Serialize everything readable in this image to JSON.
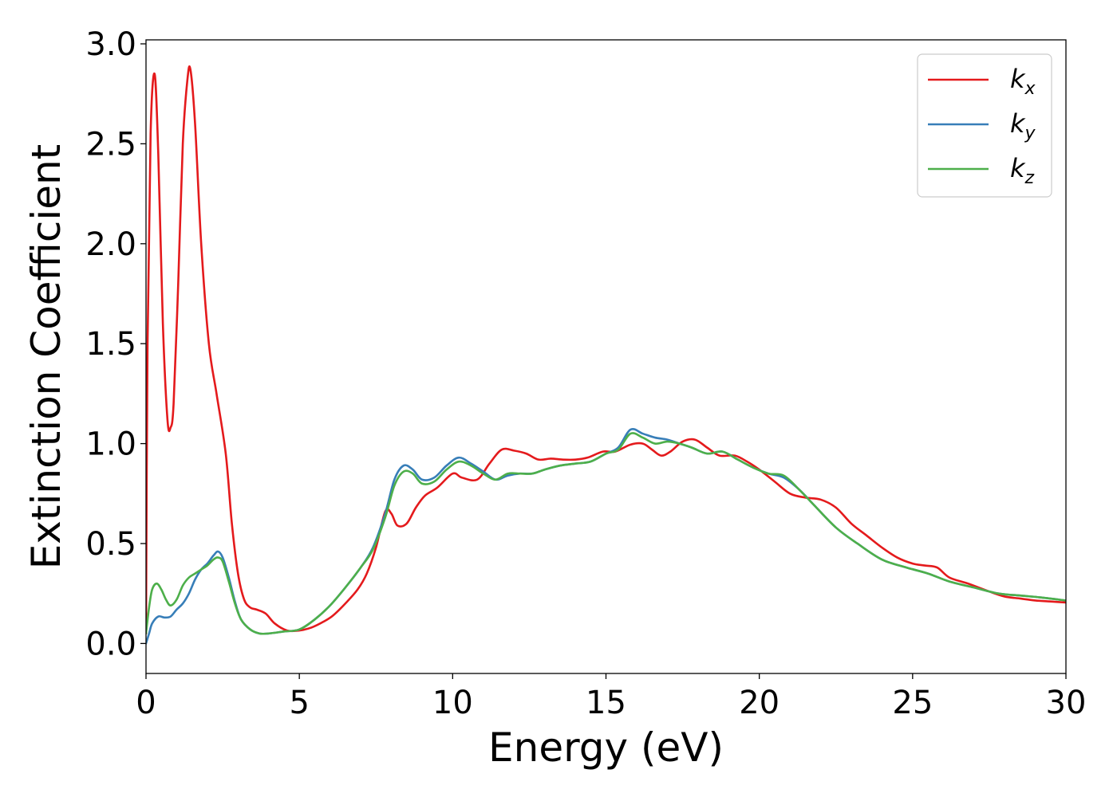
{
  "chart_data": {
    "type": "line",
    "xlabel": "Energy (eV)",
    "ylabel": "Extinction Coefficient",
    "xlim": [
      0,
      30
    ],
    "ylim": [
      -0.15,
      3.02
    ],
    "xticks": [
      0,
      5,
      10,
      15,
      20,
      25,
      30
    ],
    "xtick_labels": [
      "0",
      "5",
      "10",
      "15",
      "20",
      "25",
      "30"
    ],
    "yticks": [
      0.0,
      0.5,
      1.0,
      1.5,
      2.0,
      2.5,
      3.0
    ],
    "ytick_labels": [
      "0.0",
      "0.5",
      "1.0",
      "1.5",
      "2.0",
      "2.5",
      "3.0"
    ],
    "grid": false,
    "legend_position": "top-right",
    "series": [
      {
        "name": "k",
        "subscript": "x",
        "color": "#e41a1c",
        "x": [
          0,
          0.05,
          0.15,
          0.28,
          0.4,
          0.55,
          0.7,
          0.8,
          0.9,
          1.05,
          1.2,
          1.35,
          1.45,
          1.6,
          1.8,
          2.05,
          2.3,
          2.6,
          2.8,
          3.0,
          3.2,
          3.4,
          3.6,
          3.9,
          4.2,
          4.6,
          5.0,
          5.4,
          5.8,
          6.1,
          6.5,
          6.9,
          7.2,
          7.5,
          7.8,
          8.0,
          8.2,
          8.5,
          8.8,
          9.1,
          9.5,
          10.0,
          10.3,
          10.8,
          11.2,
          11.6,
          12.0,
          12.4,
          12.8,
          13.2,
          13.6,
          14.0,
          14.4,
          14.9,
          15.3,
          15.8,
          16.2,
          16.5,
          16.8,
          17.1,
          17.5,
          17.9,
          18.3,
          18.7,
          19.2,
          19.6,
          20.0,
          20.5,
          21.0,
          21.5,
          22.0,
          22.5,
          23.0,
          23.5,
          24.0,
          24.5,
          25.0,
          25.4,
          25.8,
          26.2,
          26.8,
          27.5,
          28.0,
          28.5,
          29.0,
          29.5,
          30.0
        ],
        "y": [
          0.05,
          1.5,
          2.55,
          2.85,
          2.45,
          1.6,
          1.12,
          1.08,
          1.2,
          1.8,
          2.5,
          2.82,
          2.87,
          2.6,
          2.0,
          1.5,
          1.25,
          0.95,
          0.6,
          0.35,
          0.22,
          0.18,
          0.17,
          0.15,
          0.1,
          0.065,
          0.065,
          0.08,
          0.11,
          0.14,
          0.2,
          0.27,
          0.35,
          0.48,
          0.66,
          0.65,
          0.59,
          0.6,
          0.68,
          0.74,
          0.78,
          0.85,
          0.83,
          0.82,
          0.9,
          0.97,
          0.965,
          0.95,
          0.92,
          0.925,
          0.92,
          0.92,
          0.93,
          0.96,
          0.96,
          0.995,
          1.0,
          0.97,
          0.94,
          0.96,
          1.01,
          1.02,
          0.98,
          0.94,
          0.94,
          0.91,
          0.87,
          0.81,
          0.75,
          0.73,
          0.72,
          0.68,
          0.6,
          0.54,
          0.48,
          0.43,
          0.4,
          0.39,
          0.38,
          0.33,
          0.3,
          0.26,
          0.235,
          0.225,
          0.215,
          0.21,
          0.205
        ]
      },
      {
        "name": "k",
        "subscript": "y",
        "color": "#377eb8",
        "x": [
          0,
          0.1,
          0.2,
          0.4,
          0.6,
          0.8,
          1.0,
          1.2,
          1.4,
          1.6,
          1.8,
          2.0,
          2.2,
          2.35,
          2.5,
          2.7,
          2.9,
          3.1,
          3.4,
          3.7,
          4.0,
          4.5,
          5.0,
          5.5,
          6.0,
          6.5,
          7.0,
          7.4,
          7.8,
          8.1,
          8.4,
          8.7,
          9.0,
          9.4,
          9.8,
          10.2,
          10.6,
          11.0,
          11.4,
          11.8,
          12.2,
          12.6,
          13.0,
          13.5,
          14.0,
          14.5,
          15.0,
          15.4,
          15.8,
          16.2,
          16.6,
          17.0,
          17.4,
          17.8,
          18.3,
          18.8,
          19.3,
          19.8,
          20.3,
          20.8,
          21.3,
          21.8,
          22.5,
          23.2,
          24.0,
          24.8,
          25.5,
          26.2,
          27.0,
          27.8,
          28.5,
          29.2,
          30.0
        ],
        "y": [
          0.0,
          0.05,
          0.1,
          0.135,
          0.13,
          0.135,
          0.17,
          0.2,
          0.25,
          0.32,
          0.37,
          0.4,
          0.44,
          0.46,
          0.43,
          0.33,
          0.21,
          0.12,
          0.07,
          0.05,
          0.05,
          0.06,
          0.07,
          0.12,
          0.19,
          0.28,
          0.38,
          0.48,
          0.65,
          0.82,
          0.89,
          0.87,
          0.82,
          0.83,
          0.89,
          0.93,
          0.9,
          0.86,
          0.82,
          0.84,
          0.85,
          0.85,
          0.87,
          0.89,
          0.9,
          0.91,
          0.95,
          0.98,
          1.07,
          1.05,
          1.03,
          1.02,
          1.0,
          0.98,
          0.95,
          0.96,
          0.92,
          0.88,
          0.85,
          0.83,
          0.77,
          0.69,
          0.58,
          0.5,
          0.42,
          0.38,
          0.35,
          0.31,
          0.28,
          0.25,
          0.24,
          0.23,
          0.215
        ]
      },
      {
        "name": "k",
        "subscript": "z",
        "color": "#4daf4a",
        "x": [
          0,
          0.1,
          0.2,
          0.35,
          0.5,
          0.65,
          0.8,
          1.0,
          1.2,
          1.4,
          1.6,
          1.8,
          2.0,
          2.2,
          2.35,
          2.5,
          2.7,
          2.9,
          3.1,
          3.4,
          3.7,
          4.0,
          4.5,
          5.0,
          5.5,
          6.0,
          6.5,
          7.0,
          7.4,
          7.8,
          8.1,
          8.4,
          8.7,
          9.0,
          9.4,
          9.8,
          10.2,
          10.6,
          11.0,
          11.4,
          11.8,
          12.2,
          12.6,
          13.0,
          13.5,
          14.0,
          14.5,
          15.0,
          15.4,
          15.8,
          16.2,
          16.6,
          17.0,
          17.4,
          17.8,
          18.3,
          18.8,
          19.3,
          19.8,
          20.3,
          20.8,
          21.3,
          21.8,
          22.5,
          23.2,
          24.0,
          24.8,
          25.5,
          26.2,
          27.0,
          27.8,
          28.5,
          29.2,
          30.0
        ],
        "y": [
          0.05,
          0.18,
          0.27,
          0.3,
          0.27,
          0.22,
          0.19,
          0.22,
          0.29,
          0.33,
          0.35,
          0.37,
          0.39,
          0.42,
          0.43,
          0.41,
          0.31,
          0.2,
          0.12,
          0.07,
          0.05,
          0.05,
          0.06,
          0.07,
          0.12,
          0.19,
          0.28,
          0.38,
          0.47,
          0.63,
          0.79,
          0.86,
          0.85,
          0.8,
          0.81,
          0.87,
          0.91,
          0.89,
          0.85,
          0.82,
          0.85,
          0.85,
          0.85,
          0.87,
          0.89,
          0.9,
          0.91,
          0.95,
          0.97,
          1.05,
          1.03,
          1.0,
          1.01,
          1.0,
          0.98,
          0.95,
          0.96,
          0.92,
          0.88,
          0.85,
          0.84,
          0.77,
          0.69,
          0.58,
          0.5,
          0.42,
          0.38,
          0.35,
          0.31,
          0.28,
          0.25,
          0.24,
          0.23,
          0.215
        ]
      }
    ]
  }
}
